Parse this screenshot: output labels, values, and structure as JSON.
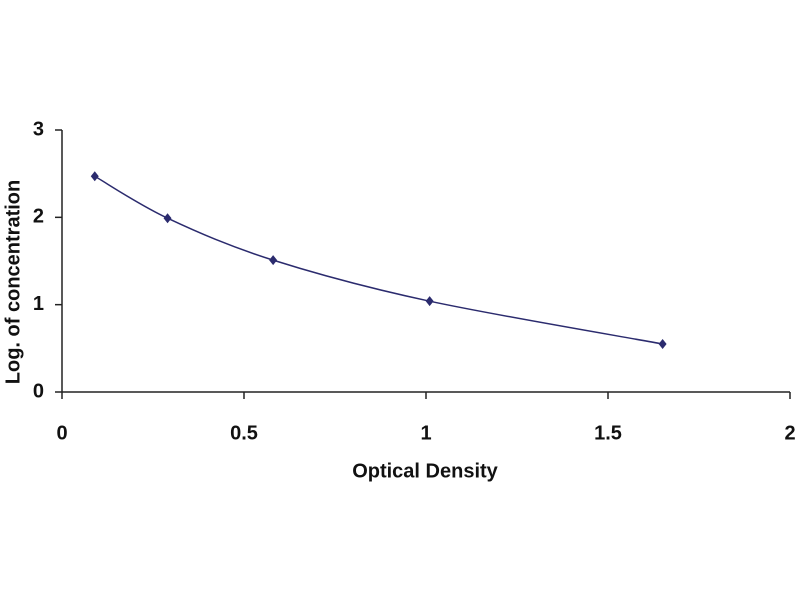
{
  "chart_data": {
    "type": "scatter",
    "x_label": "Optical Density",
    "y_label": "Log. of concentration",
    "series": [
      {
        "color": "#2b2b6e",
        "x": [
          0.09,
          0.29,
          0.58,
          1.01,
          1.65
        ],
        "values": [
          2.47,
          1.99,
          1.51,
          1.04,
          0.55
        ]
      }
    ],
    "xlim": [
      0,
      2
    ],
    "xticks": [
      0,
      0.5,
      1,
      1.5,
      2
    ],
    "ylim": [
      0,
      3
    ],
    "yticks": [
      0,
      1,
      2,
      3
    ],
    "smooth_line": true
  }
}
